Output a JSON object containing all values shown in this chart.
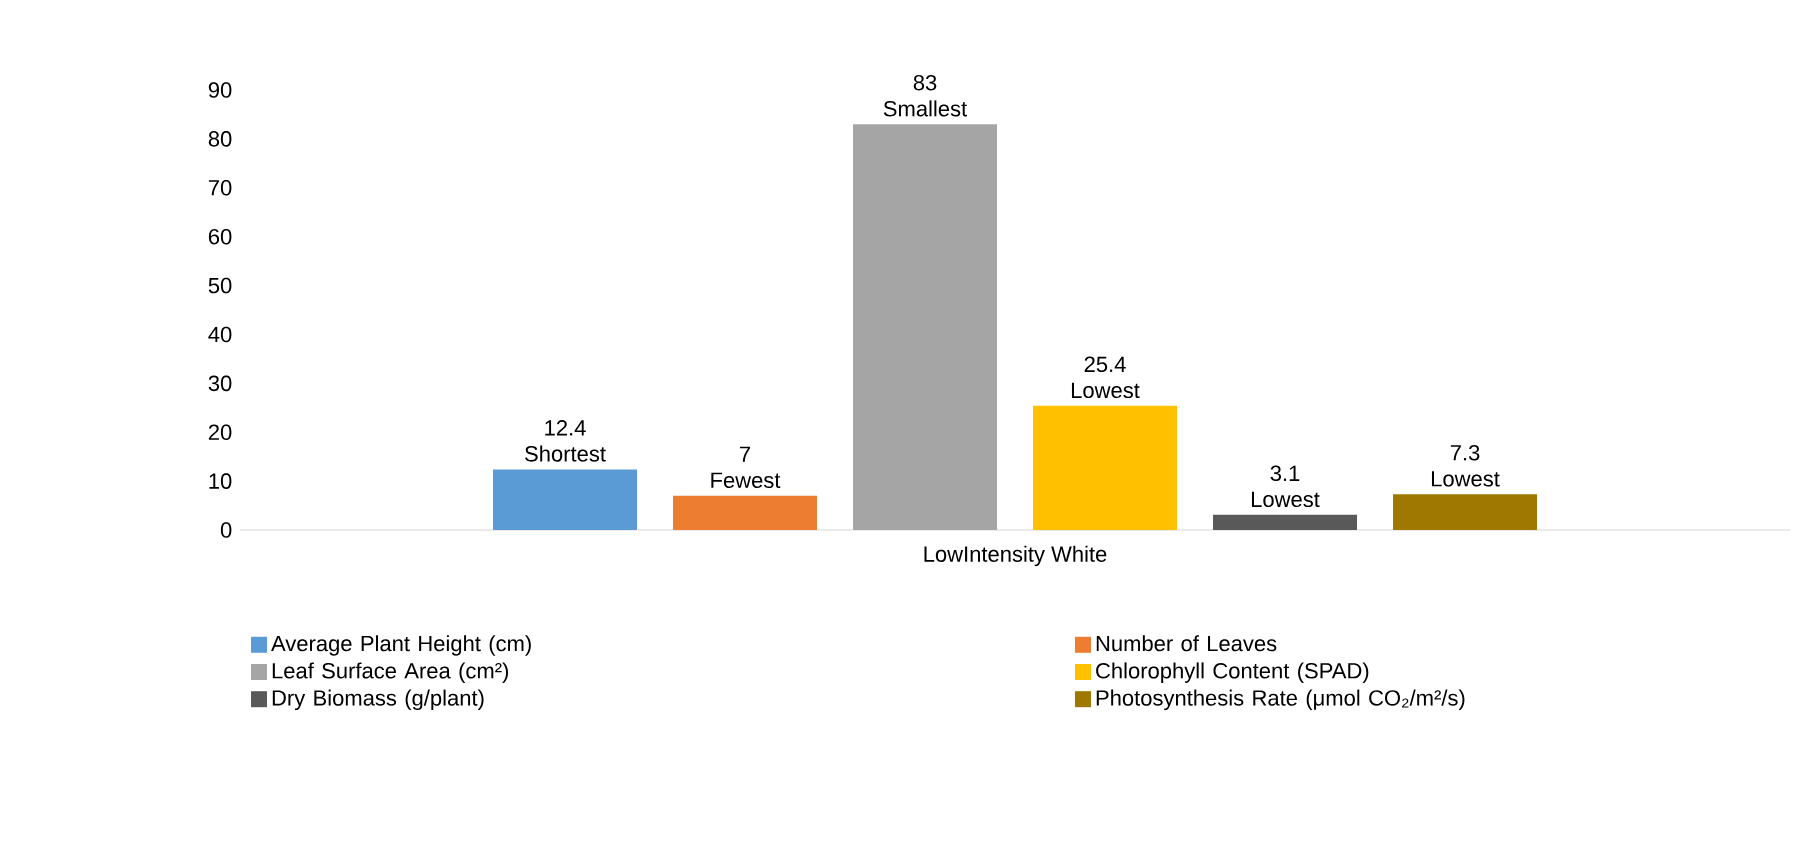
{
  "chart_data": {
    "type": "bar",
    "categories": [
      "LowIntensity White"
    ],
    "ylim": [
      0,
      90
    ],
    "yticks": [
      0,
      10,
      20,
      30,
      40,
      50,
      60,
      70,
      80,
      90
    ],
    "grid": false,
    "legend": "bottom",
    "series": [
      {
        "name": "Average Plant Height (cm)",
        "color": "#5b9bd5",
        "values": [
          12.4
        ],
        "value_labels": [
          "12.4 Shortest"
        ]
      },
      {
        "name": "Number of Leaves",
        "color": "#ed7d31",
        "values": [
          7
        ],
        "value_labels": [
          "7 Fewest"
        ]
      },
      {
        "name": "Leaf Surface Area (cm²)",
        "color": "#a5a5a5",
        "values": [
          83
        ],
        "value_labels": [
          "83 Smallest"
        ]
      },
      {
        "name": "Chlorophyll Content (SPAD)",
        "color": "#ffc000",
        "values": [
          25.4
        ],
        "value_labels": [
          "25.4 Lowest"
        ]
      },
      {
        "name": "Dry Biomass (g/plant)",
        "color": "#595959",
        "values": [
          3.1
        ],
        "value_labels": [
          "3.1 Lowest"
        ]
      },
      {
        "name": "Photosynthesis Rate (μmol CO₂/m²/s)",
        "color": "#9e7800",
        "values": [
          7.3
        ],
        "value_labels": [
          "7.3 Lowest"
        ]
      }
    ]
  }
}
